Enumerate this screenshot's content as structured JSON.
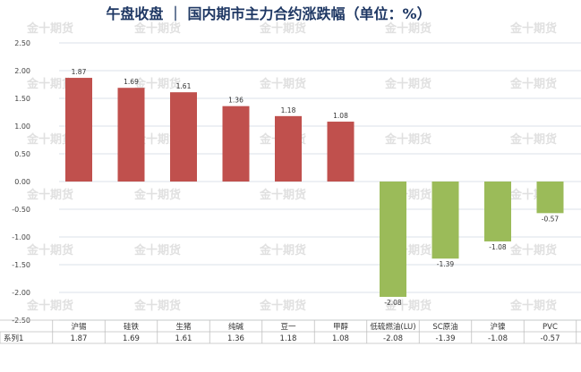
{
  "title": "午盘收盘 ｜ 国内期市主力合约涨跌幅（单位：%）",
  "watermark": "金十期货",
  "table": {
    "row_label": "系列1"
  },
  "colors": {
    "positive": "#c0504d",
    "negative": "#9bbb59",
    "title": "#1f3864",
    "grid": "#cfd8e3"
  },
  "chart_data": {
    "type": "bar",
    "title": "午盘收盘 ｜ 国内期市主力合约涨跌幅（单位：%）",
    "categories": [
      "沪锡",
      "硅铁",
      "生猪",
      "纯碱",
      "豆一",
      "甲醇",
      "低硫燃油(LU)",
      "SC原油",
      "沪镍",
      "PVC"
    ],
    "series": [
      {
        "name": "系列1",
        "values": [
          1.87,
          1.69,
          1.61,
          1.36,
          1.18,
          1.08,
          -2.08,
          -1.39,
          -1.08,
          -0.57
        ]
      }
    ],
    "value_labels": [
      "1.87",
      "1.69",
      "1.61",
      "1.36",
      "1.18",
      "1.08",
      "-2.08",
      "-1.39",
      "-1.08",
      "-0.57"
    ],
    "table_values": [
      "1.87",
      "1.69",
      "1.61",
      "1.36",
      "1.18",
      "1.08",
      "-2.08",
      "-1.39",
      "-1.08",
      "-0.57"
    ],
    "yticks": [
      "2.50",
      "2.00",
      "1.50",
      "1.00",
      "0.50",
      "0.00",
      "-0.50",
      "-1.00",
      "-1.50",
      "-2.00",
      "-2.50"
    ],
    "ylim": [
      -2.5,
      2.5
    ],
    "grid": true,
    "legend": "data-table",
    "xlabel": "",
    "ylabel": ""
  }
}
